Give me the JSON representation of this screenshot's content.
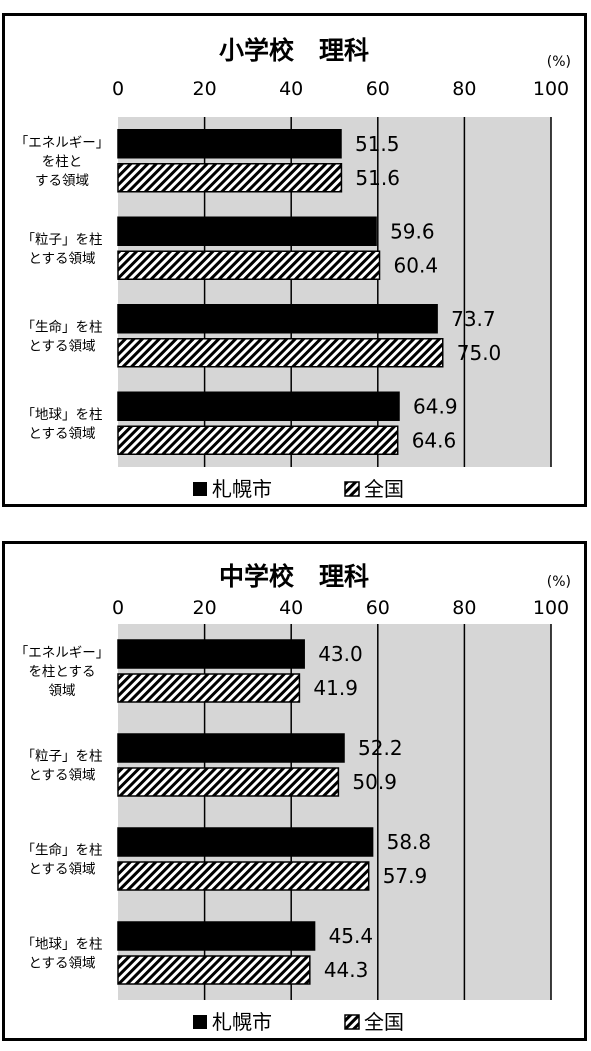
{
  "chart_data": [
    {
      "type": "bar",
      "orientation": "horizontal",
      "title": "小学校　理科",
      "unit": "(%)",
      "xlim": [
        0,
        100
      ],
      "ticks": [
        "0",
        "20",
        "40",
        "60",
        "80",
        "100"
      ],
      "categories": [
        [
          "「エネルギー」",
          "を柱と",
          "する領域"
        ],
        [
          "「粒子」を柱",
          "とする領域"
        ],
        [
          "「生命」を柱",
          "とする領域"
        ],
        [
          "「地球」を柱",
          "とする領域"
        ]
      ],
      "series": [
        {
          "name": "札幌市",
          "style": "solid",
          "values": [
            51.5,
            59.6,
            73.7,
            64.9
          ],
          "labels": [
            "51.5",
            "59.6",
            "73.7",
            "64.9"
          ]
        },
        {
          "name": "全国",
          "style": "hatched",
          "values": [
            51.6,
            60.4,
            75.0,
            64.6
          ],
          "labels": [
            "51.6",
            "60.4",
            "75.0",
            "64.6"
          ]
        }
      ],
      "grid": true,
      "legend_position": "bottom",
      "colors": {
        "plot_bg": "#d6d6d6",
        "bar": "#000000"
      }
    },
    {
      "type": "bar",
      "orientation": "horizontal",
      "title": "中学校　理科",
      "unit": "(%)",
      "xlim": [
        0,
        100
      ],
      "ticks": [
        "0",
        "20",
        "40",
        "60",
        "80",
        "100"
      ],
      "categories": [
        [
          "「エネルギー」",
          "を柱とする",
          "領域"
        ],
        [
          "「粒子」を柱",
          "とする領域"
        ],
        [
          "「生命」を柱",
          "とする領域"
        ],
        [
          "「地球」を柱",
          "とする領域"
        ]
      ],
      "series": [
        {
          "name": "札幌市",
          "style": "solid",
          "values": [
            43.0,
            52.2,
            58.8,
            45.4
          ],
          "labels": [
            "43.0",
            "52.2",
            "58.8",
            "45.4"
          ]
        },
        {
          "name": "全国",
          "style": "hatched",
          "values": [
            41.9,
            50.9,
            57.9,
            44.3
          ],
          "labels": [
            "41.9",
            "50.9",
            "57.9",
            "44.3"
          ]
        }
      ],
      "grid": true,
      "legend_position": "bottom",
      "colors": {
        "plot_bg": "#d6d6d6",
        "bar": "#000000"
      }
    }
  ]
}
